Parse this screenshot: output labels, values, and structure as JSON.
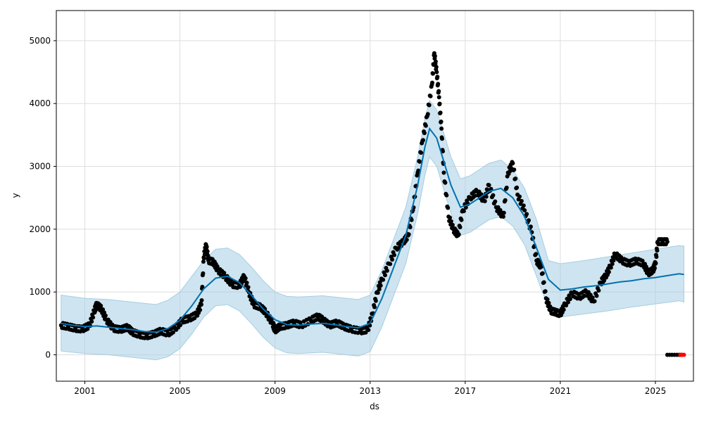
{
  "chart_data": {
    "type": "line",
    "title": "",
    "xlabel": "ds",
    "ylabel": "y",
    "x_tick_labels": [
      "2001",
      "2005",
      "2009",
      "2013",
      "2017",
      "2021",
      "2025"
    ],
    "x_tick_years": [
      2001,
      2005,
      2009,
      2013,
      2017,
      2021,
      2025
    ],
    "y_ticks": [
      0,
      1000,
      2000,
      3000,
      4000,
      5000
    ],
    "xlim": [
      1999.8,
      2026.6
    ],
    "ylim": [
      -420,
      5480
    ],
    "grid": true,
    "legend": "none",
    "colors": {
      "forecast_line": "#0072B2",
      "uncertainty_band": "#a6cee3",
      "observed_points": "#000000",
      "highlight_points": "#ff0000"
    },
    "series": [
      {
        "role": "observed",
        "points": [
          [
            2000.0,
            470
          ],
          [
            2000.3,
            450
          ],
          [
            2000.6,
            420
          ],
          [
            2000.9,
            410
          ],
          [
            2001.2,
            470
          ],
          [
            2001.4,
            700
          ],
          [
            2001.5,
            800
          ],
          [
            2001.7,
            730
          ],
          [
            2001.9,
            560
          ],
          [
            2002.2,
            420
          ],
          [
            2002.5,
            400
          ],
          [
            2002.8,
            440
          ],
          [
            2003.0,
            360
          ],
          [
            2003.3,
            320
          ],
          [
            2003.6,
            300
          ],
          [
            2003.9,
            330
          ],
          [
            2004.2,
            380
          ],
          [
            2004.5,
            340
          ],
          [
            2004.8,
            420
          ],
          [
            2005.1,
            550
          ],
          [
            2005.4,
            580
          ],
          [
            2005.7,
            640
          ],
          [
            2005.9,
            800
          ],
          [
            2006.0,
            1550
          ],
          [
            2006.1,
            1750
          ],
          [
            2006.2,
            1500
          ],
          [
            2006.4,
            1480
          ],
          [
            2006.6,
            1350
          ],
          [
            2006.9,
            1250
          ],
          [
            2007.2,
            1120
          ],
          [
            2007.5,
            1100
          ],
          [
            2007.7,
            1250
          ],
          [
            2007.9,
            1000
          ],
          [
            2008.1,
            800
          ],
          [
            2008.4,
            760
          ],
          [
            2008.6,
            680
          ],
          [
            2008.9,
            500
          ],
          [
            2009.0,
            390
          ],
          [
            2009.2,
            450
          ],
          [
            2009.5,
            470
          ],
          [
            2009.8,
            510
          ],
          [
            2010.1,
            470
          ],
          [
            2010.5,
            550
          ],
          [
            2010.8,
            610
          ],
          [
            2011.0,
            560
          ],
          [
            2011.3,
            470
          ],
          [
            2011.6,
            510
          ],
          [
            2011.9,
            450
          ],
          [
            2012.2,
            410
          ],
          [
            2012.6,
            380
          ],
          [
            2012.9,
            400
          ],
          [
            2013.1,
            650
          ],
          [
            2013.3,
            1000
          ],
          [
            2013.5,
            1200
          ],
          [
            2013.8,
            1450
          ],
          [
            2014.1,
            1700
          ],
          [
            2014.4,
            1800
          ],
          [
            2014.6,
            1900
          ],
          [
            2014.8,
            2300
          ],
          [
            2015.0,
            2900
          ],
          [
            2015.2,
            3400
          ],
          [
            2015.4,
            3800
          ],
          [
            2015.6,
            4300
          ],
          [
            2015.7,
            4800
          ],
          [
            2015.8,
            4500
          ],
          [
            2015.9,
            4100
          ],
          [
            2016.0,
            3600
          ],
          [
            2016.1,
            2900
          ],
          [
            2016.3,
            2200
          ],
          [
            2016.5,
            2000
          ],
          [
            2016.7,
            1900
          ],
          [
            2016.9,
            2300
          ],
          [
            2017.2,
            2500
          ],
          [
            2017.5,
            2600
          ],
          [
            2017.8,
            2450
          ],
          [
            2018.0,
            2700
          ],
          [
            2018.3,
            2350
          ],
          [
            2018.6,
            2200
          ],
          [
            2018.8,
            2900
          ],
          [
            2019.0,
            3050
          ],
          [
            2019.2,
            2550
          ],
          [
            2019.5,
            2300
          ],
          [
            2019.8,
            1950
          ],
          [
            2020.0,
            1500
          ],
          [
            2020.2,
            1400
          ],
          [
            2020.4,
            900
          ],
          [
            2020.6,
            700
          ],
          [
            2020.8,
            680
          ],
          [
            2021.0,
            650
          ],
          [
            2021.2,
            800
          ],
          [
            2021.5,
            980
          ],
          [
            2021.8,
            920
          ],
          [
            2022.1,
            1000
          ],
          [
            2022.4,
            850
          ],
          [
            2022.7,
            1150
          ],
          [
            2022.9,
            1250
          ],
          [
            2023.1,
            1400
          ],
          [
            2023.3,
            1600
          ],
          [
            2023.6,
            1500
          ],
          [
            2023.9,
            1450
          ],
          [
            2024.2,
            1500
          ],
          [
            2024.5,
            1450
          ],
          [
            2024.7,
            1300
          ],
          [
            2024.9,
            1350
          ],
          [
            2025.0,
            1450
          ],
          [
            2025.1,
            1800
          ],
          [
            2025.3,
            1800
          ],
          [
            2025.5,
            1800
          ]
        ]
      },
      {
        "role": "recent_zero",
        "points": [
          [
            2025.5,
            0
          ],
          [
            2025.6,
            0
          ],
          [
            2025.7,
            0
          ],
          [
            2025.8,
            0
          ],
          [
            2025.9,
            0
          ],
          [
            2026.0,
            0
          ],
          [
            2026.1,
            0
          ]
        ]
      },
      {
        "role": "highlight",
        "points": [
          [
            2026.05,
            0
          ],
          [
            2026.12,
            0
          ],
          [
            2026.2,
            0
          ]
        ]
      },
      {
        "role": "forecast",
        "points": [
          [
            2000.0,
            500
          ],
          [
            2000.5,
            470
          ],
          [
            2001.0,
            450
          ],
          [
            2001.5,
            460
          ],
          [
            2002.0,
            440
          ],
          [
            2002.5,
            420
          ],
          [
            2003.0,
            400
          ],
          [
            2003.5,
            370
          ],
          [
            2004.0,
            360
          ],
          [
            2004.5,
            420
          ],
          [
            2005.0,
            550
          ],
          [
            2005.5,
            780
          ],
          [
            2006.0,
            1050
          ],
          [
            2006.5,
            1220
          ],
          [
            2007.0,
            1250
          ],
          [
            2007.5,
            1150
          ],
          [
            2008.0,
            950
          ],
          [
            2008.5,
            730
          ],
          [
            2009.0,
            560
          ],
          [
            2009.5,
            480
          ],
          [
            2010.0,
            470
          ],
          [
            2010.5,
            490
          ],
          [
            2011.0,
            500
          ],
          [
            2011.5,
            480
          ],
          [
            2012.0,
            450
          ],
          [
            2012.5,
            430
          ],
          [
            2013.0,
            500
          ],
          [
            2013.5,
            900
          ],
          [
            2014.0,
            1400
          ],
          [
            2014.5,
            1900
          ],
          [
            2015.0,
            2700
          ],
          [
            2015.3,
            3300
          ],
          [
            2015.5,
            3600
          ],
          [
            2015.8,
            3450
          ],
          [
            2016.0,
            3200
          ],
          [
            2016.4,
            2700
          ],
          [
            2016.8,
            2350
          ],
          [
            2017.2,
            2400
          ],
          [
            2017.6,
            2500
          ],
          [
            2018.0,
            2600
          ],
          [
            2018.5,
            2650
          ],
          [
            2019.0,
            2500
          ],
          [
            2019.5,
            2200
          ],
          [
            2020.0,
            1700
          ],
          [
            2020.5,
            1200
          ],
          [
            2021.0,
            1030
          ],
          [
            2021.5,
            1050
          ],
          [
            2022.0,
            1080
          ],
          [
            2022.5,
            1100
          ],
          [
            2023.0,
            1130
          ],
          [
            2023.5,
            1160
          ],
          [
            2024.0,
            1180
          ],
          [
            2024.5,
            1210
          ],
          [
            2025.0,
            1230
          ],
          [
            2025.5,
            1260
          ],
          [
            2026.0,
            1290
          ],
          [
            2026.2,
            1280
          ]
        ]
      },
      {
        "role": "band_upper",
        "points": [
          [
            2000.0,
            950
          ],
          [
            2001.0,
            900
          ],
          [
            2002.0,
            880
          ],
          [
            2003.0,
            840
          ],
          [
            2004.0,
            800
          ],
          [
            2004.5,
            870
          ],
          [
            2005.0,
            1000
          ],
          [
            2005.5,
            1250
          ],
          [
            2006.0,
            1500
          ],
          [
            2006.5,
            1680
          ],
          [
            2007.0,
            1700
          ],
          [
            2007.5,
            1600
          ],
          [
            2008.0,
            1400
          ],
          [
            2008.5,
            1180
          ],
          [
            2009.0,
            1000
          ],
          [
            2009.5,
            930
          ],
          [
            2010.0,
            920
          ],
          [
            2011.0,
            940
          ],
          [
            2012.0,
            900
          ],
          [
            2012.5,
            880
          ],
          [
            2013.0,
            950
          ],
          [
            2013.5,
            1350
          ],
          [
            2014.0,
            1850
          ],
          [
            2014.5,
            2350
          ],
          [
            2015.0,
            3150
          ],
          [
            2015.3,
            3750
          ],
          [
            2015.5,
            4050
          ],
          [
            2015.8,
            3900
          ],
          [
            2016.0,
            3650
          ],
          [
            2016.4,
            3150
          ],
          [
            2016.8,
            2800
          ],
          [
            2017.2,
            2850
          ],
          [
            2017.6,
            2950
          ],
          [
            2018.0,
            3050
          ],
          [
            2018.5,
            3100
          ],
          [
            2019.0,
            2950
          ],
          [
            2019.5,
            2650
          ],
          [
            2020.0,
            2150
          ],
          [
            2020.5,
            1500
          ],
          [
            2021.0,
            1450
          ],
          [
            2022.0,
            1500
          ],
          [
            2023.0,
            1560
          ],
          [
            2024.0,
            1620
          ],
          [
            2025.0,
            1680
          ],
          [
            2026.0,
            1740
          ],
          [
            2026.2,
            1730
          ]
        ]
      },
      {
        "role": "band_lower",
        "points": [
          [
            2000.0,
            60
          ],
          [
            2001.0,
            20
          ],
          [
            2002.0,
            0
          ],
          [
            2003.0,
            -40
          ],
          [
            2004.0,
            -80
          ],
          [
            2004.5,
            -30
          ],
          [
            2005.0,
            100
          ],
          [
            2005.5,
            330
          ],
          [
            2006.0,
            600
          ],
          [
            2006.5,
            780
          ],
          [
            2007.0,
            800
          ],
          [
            2007.5,
            700
          ],
          [
            2008.0,
            500
          ],
          [
            2008.5,
            280
          ],
          [
            2009.0,
            110
          ],
          [
            2009.5,
            30
          ],
          [
            2010.0,
            20
          ],
          [
            2011.0,
            40
          ],
          [
            2012.0,
            0
          ],
          [
            2012.5,
            -20
          ],
          [
            2013.0,
            50
          ],
          [
            2013.5,
            450
          ],
          [
            2014.0,
            950
          ],
          [
            2014.5,
            1450
          ],
          [
            2015.0,
            2250
          ],
          [
            2015.3,
            2850
          ],
          [
            2015.5,
            3150
          ],
          [
            2015.8,
            3000
          ],
          [
            2016.0,
            2750
          ],
          [
            2016.4,
            2250
          ],
          [
            2016.8,
            1900
          ],
          [
            2017.2,
            1950
          ],
          [
            2017.6,
            2050
          ],
          [
            2018.0,
            2150
          ],
          [
            2018.5,
            2200
          ],
          [
            2019.0,
            2050
          ],
          [
            2019.5,
            1750
          ],
          [
            2020.0,
            1250
          ],
          [
            2020.5,
            750
          ],
          [
            2021.0,
            600
          ],
          [
            2022.0,
            650
          ],
          [
            2023.0,
            700
          ],
          [
            2024.0,
            760
          ],
          [
            2025.0,
            810
          ],
          [
            2026.0,
            860
          ],
          [
            2026.2,
            840
          ]
        ]
      }
    ]
  }
}
